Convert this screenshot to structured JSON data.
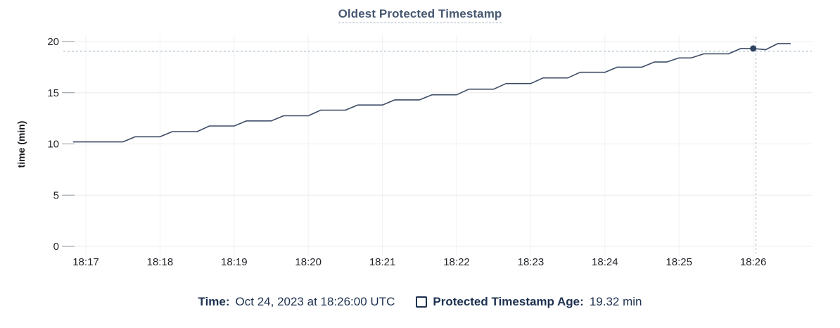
{
  "chart_data": {
    "type": "line",
    "title": "Oldest Protected Timestamp",
    "xlabel": "",
    "ylabel": "time (min)",
    "ylim": [
      0,
      20
    ],
    "yticks": [
      0,
      5,
      10,
      15,
      20
    ],
    "xtick_labels": [
      "18:17",
      "18:18",
      "18:19",
      "18:20",
      "18:21",
      "18:22",
      "18:23",
      "18:24",
      "18:25",
      "18:26"
    ],
    "grid": true,
    "legend_position": "bottom",
    "x": [
      "18:16:50",
      "18:17:00",
      "18:17:10",
      "18:17:20",
      "18:17:30",
      "18:17:40",
      "18:17:50",
      "18:18:00",
      "18:18:10",
      "18:18:20",
      "18:18:30",
      "18:18:40",
      "18:18:50",
      "18:19:00",
      "18:19:10",
      "18:19:20",
      "18:19:30",
      "18:19:40",
      "18:19:50",
      "18:20:00",
      "18:20:10",
      "18:20:20",
      "18:20:30",
      "18:20:40",
      "18:20:50",
      "18:21:00",
      "18:21:10",
      "18:21:20",
      "18:21:30",
      "18:21:40",
      "18:21:50",
      "18:22:00",
      "18:22:10",
      "18:22:20",
      "18:22:30",
      "18:22:40",
      "18:22:50",
      "18:23:00",
      "18:23:10",
      "18:23:20",
      "18:23:30",
      "18:23:40",
      "18:23:50",
      "18:24:00",
      "18:24:10",
      "18:24:20",
      "18:24:30",
      "18:24:40",
      "18:24:50",
      "18:25:00",
      "18:25:10",
      "18:25:20",
      "18:25:30",
      "18:25:40",
      "18:25:50",
      "18:26:00",
      "18:26:10",
      "18:26:20",
      "18:26:30"
    ],
    "series": [
      {
        "name": "Protected Timestamp Age",
        "values": [
          10.2,
          10.2,
          10.2,
          10.2,
          10.2,
          10.7,
          10.7,
          10.7,
          11.2,
          11.2,
          11.2,
          11.75,
          11.75,
          11.75,
          12.25,
          12.25,
          12.25,
          12.75,
          12.75,
          12.75,
          13.3,
          13.3,
          13.3,
          13.8,
          13.8,
          13.8,
          14.3,
          14.3,
          14.3,
          14.8,
          14.8,
          14.8,
          15.35,
          15.35,
          15.35,
          15.9,
          15.9,
          15.9,
          16.45,
          16.45,
          16.45,
          17.0,
          17.0,
          17.0,
          17.5,
          17.5,
          17.5,
          18.0,
          18.0,
          18.4,
          18.4,
          18.8,
          18.8,
          18.8,
          19.32,
          19.32,
          19.2,
          19.8,
          19.8
        ]
      }
    ],
    "hover": {
      "time": "18:26:00",
      "value": 19.32,
      "time_label": "Time:",
      "time_text": "Oct 24, 2023 at 18:26:00 UTC",
      "series_label": "Protected Timestamp Age:",
      "value_text": "19.32 min"
    },
    "colors": {
      "line": "#3d4c66",
      "dot": "#2e4160",
      "crosshair": "#9fb3c3",
      "grid_horizontal": "#ececec",
      "grid_vertical": "#f0f1f3",
      "axis_tick": "#8f969e",
      "axis_label": "#1f2227",
      "title": "#475872",
      "title_underline": "#a9b5c5",
      "legend_text": "#1d3150"
    }
  }
}
